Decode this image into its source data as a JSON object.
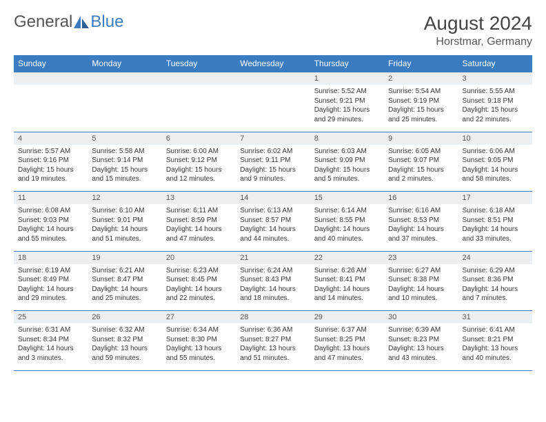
{
  "brand": {
    "part1": "General",
    "part2": "Blue"
  },
  "title": "August 2024",
  "location": "Horstmar, Germany",
  "header_bg": "#3b7bbf",
  "header_fg": "#ffffff",
  "daynum_bg": "#eceff1",
  "border_color": "#3b7bbf",
  "weekdays": [
    "Sunday",
    "Monday",
    "Tuesday",
    "Wednesday",
    "Thursday",
    "Friday",
    "Saturday"
  ],
  "weeks": [
    {
      "nums": [
        "",
        "",
        "",
        "",
        "1",
        "2",
        "3"
      ],
      "cells": [
        null,
        null,
        null,
        null,
        {
          "sunrise": "5:52 AM",
          "sunset": "9:21 PM",
          "daylight": "15 hours and 29 minutes."
        },
        {
          "sunrise": "5:54 AM",
          "sunset": "9:19 PM",
          "daylight": "15 hours and 25 minutes."
        },
        {
          "sunrise": "5:55 AM",
          "sunset": "9:18 PM",
          "daylight": "15 hours and 22 minutes."
        }
      ]
    },
    {
      "nums": [
        "4",
        "5",
        "6",
        "7",
        "8",
        "9",
        "10"
      ],
      "cells": [
        {
          "sunrise": "5:57 AM",
          "sunset": "9:16 PM",
          "daylight": "15 hours and 19 minutes."
        },
        {
          "sunrise": "5:58 AM",
          "sunset": "9:14 PM",
          "daylight": "15 hours and 15 minutes."
        },
        {
          "sunrise": "6:00 AM",
          "sunset": "9:12 PM",
          "daylight": "15 hours and 12 minutes."
        },
        {
          "sunrise": "6:02 AM",
          "sunset": "9:11 PM",
          "daylight": "15 hours and 9 minutes."
        },
        {
          "sunrise": "6:03 AM",
          "sunset": "9:09 PM",
          "daylight": "15 hours and 5 minutes."
        },
        {
          "sunrise": "6:05 AM",
          "sunset": "9:07 PM",
          "daylight": "15 hours and 2 minutes."
        },
        {
          "sunrise": "6:06 AM",
          "sunset": "9:05 PM",
          "daylight": "14 hours and 58 minutes."
        }
      ]
    },
    {
      "nums": [
        "11",
        "12",
        "13",
        "14",
        "15",
        "16",
        "17"
      ],
      "cells": [
        {
          "sunrise": "6:08 AM",
          "sunset": "9:03 PM",
          "daylight": "14 hours and 55 minutes."
        },
        {
          "sunrise": "6:10 AM",
          "sunset": "9:01 PM",
          "daylight": "14 hours and 51 minutes."
        },
        {
          "sunrise": "6:11 AM",
          "sunset": "8:59 PM",
          "daylight": "14 hours and 47 minutes."
        },
        {
          "sunrise": "6:13 AM",
          "sunset": "8:57 PM",
          "daylight": "14 hours and 44 minutes."
        },
        {
          "sunrise": "6:14 AM",
          "sunset": "8:55 PM",
          "daylight": "14 hours and 40 minutes."
        },
        {
          "sunrise": "6:16 AM",
          "sunset": "8:53 PM",
          "daylight": "14 hours and 37 minutes."
        },
        {
          "sunrise": "6:18 AM",
          "sunset": "8:51 PM",
          "daylight": "14 hours and 33 minutes."
        }
      ]
    },
    {
      "nums": [
        "18",
        "19",
        "20",
        "21",
        "22",
        "23",
        "24"
      ],
      "cells": [
        {
          "sunrise": "6:19 AM",
          "sunset": "8:49 PM",
          "daylight": "14 hours and 29 minutes."
        },
        {
          "sunrise": "6:21 AM",
          "sunset": "8:47 PM",
          "daylight": "14 hours and 25 minutes."
        },
        {
          "sunrise": "6:23 AM",
          "sunset": "8:45 PM",
          "daylight": "14 hours and 22 minutes."
        },
        {
          "sunrise": "6:24 AM",
          "sunset": "8:43 PM",
          "daylight": "14 hours and 18 minutes."
        },
        {
          "sunrise": "6:26 AM",
          "sunset": "8:41 PM",
          "daylight": "14 hours and 14 minutes."
        },
        {
          "sunrise": "6:27 AM",
          "sunset": "8:38 PM",
          "daylight": "14 hours and 10 minutes."
        },
        {
          "sunrise": "6:29 AM",
          "sunset": "8:36 PM",
          "daylight": "14 hours and 7 minutes."
        }
      ]
    },
    {
      "nums": [
        "25",
        "26",
        "27",
        "28",
        "29",
        "30",
        "31"
      ],
      "cells": [
        {
          "sunrise": "6:31 AM",
          "sunset": "8:34 PM",
          "daylight": "14 hours and 3 minutes."
        },
        {
          "sunrise": "6:32 AM",
          "sunset": "8:32 PM",
          "daylight": "13 hours and 59 minutes."
        },
        {
          "sunrise": "6:34 AM",
          "sunset": "8:30 PM",
          "daylight": "13 hours and 55 minutes."
        },
        {
          "sunrise": "6:36 AM",
          "sunset": "8:27 PM",
          "daylight": "13 hours and 51 minutes."
        },
        {
          "sunrise": "6:37 AM",
          "sunset": "8:25 PM",
          "daylight": "13 hours and 47 minutes."
        },
        {
          "sunrise": "6:39 AM",
          "sunset": "8:23 PM",
          "daylight": "13 hours and 43 minutes."
        },
        {
          "sunrise": "6:41 AM",
          "sunset": "8:21 PM",
          "daylight": "13 hours and 40 minutes."
        }
      ]
    }
  ]
}
